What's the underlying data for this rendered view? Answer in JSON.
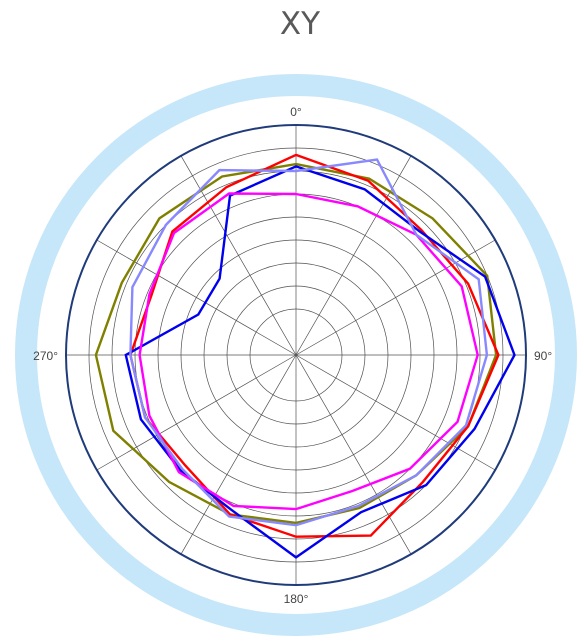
{
  "title": "XY",
  "chart_data": {
    "type": "polar",
    "title": "XY",
    "angle_unit": "degrees",
    "direction": "clockwise",
    "zero_at": "top",
    "theta": [
      0,
      22.5,
      45,
      67.5,
      90,
      112.5,
      135,
      157.5,
      180,
      202.5,
      225,
      247.5,
      270,
      292.5,
      315,
      337.5
    ],
    "r_range": [
      0,
      1
    ],
    "r_gridlines": [
      0.2,
      0.3,
      0.4,
      0.5,
      0.6,
      0.7,
      0.8,
      0.9,
      1.0
    ],
    "angular_gridline_step": 30,
    "angular_tick_labels": [
      "0°",
      "90°",
      "180°",
      "270°"
    ],
    "grid": true,
    "series": [
      {
        "color": "#808000",
        "values": [
          0.83,
          0.83,
          0.84,
          0.9,
          0.87,
          0.81,
          0.74,
          0.72,
          0.73,
          0.75,
          0.78,
          0.86,
          0.87,
          0.82,
          0.84,
          0.84
        ]
      },
      {
        "color": "#FF0000",
        "values": [
          0.87,
          0.82,
          0.77,
          0.81,
          0.88,
          0.81,
          0.78,
          0.85,
          0.79,
          0.75,
          0.68,
          0.71,
          0.72,
          0.68,
          0.76,
          0.79
        ]
      },
      {
        "color": "#0000EE",
        "values": [
          0.82,
          0.78,
          0.76,
          0.89,
          0.95,
          0.84,
          0.8,
          0.74,
          0.88,
          0.73,
          0.71,
          0.73,
          0.74,
          0.46,
          0.47,
          0.75
        ]
      },
      {
        "color": "#FF00FF",
        "values": [
          0.7,
          0.7,
          0.74,
          0.78,
          0.79,
          0.76,
          0.7,
          0.64,
          0.67,
          0.71,
          0.72,
          0.69,
          0.68,
          0.69,
          0.75,
          0.76
        ]
      },
      {
        "color": "#8888FF",
        "values": [
          0.8,
          0.92,
          0.74,
          0.86,
          0.83,
          0.8,
          0.74,
          0.71,
          0.74,
          0.76,
          0.7,
          0.71,
          0.72,
          0.77,
          0.8,
          0.87
        ]
      }
    ]
  },
  "colors": {
    "outer_ring": "#C6E6FA",
    "frame": "#1F3B7A",
    "grid": "#505050"
  }
}
